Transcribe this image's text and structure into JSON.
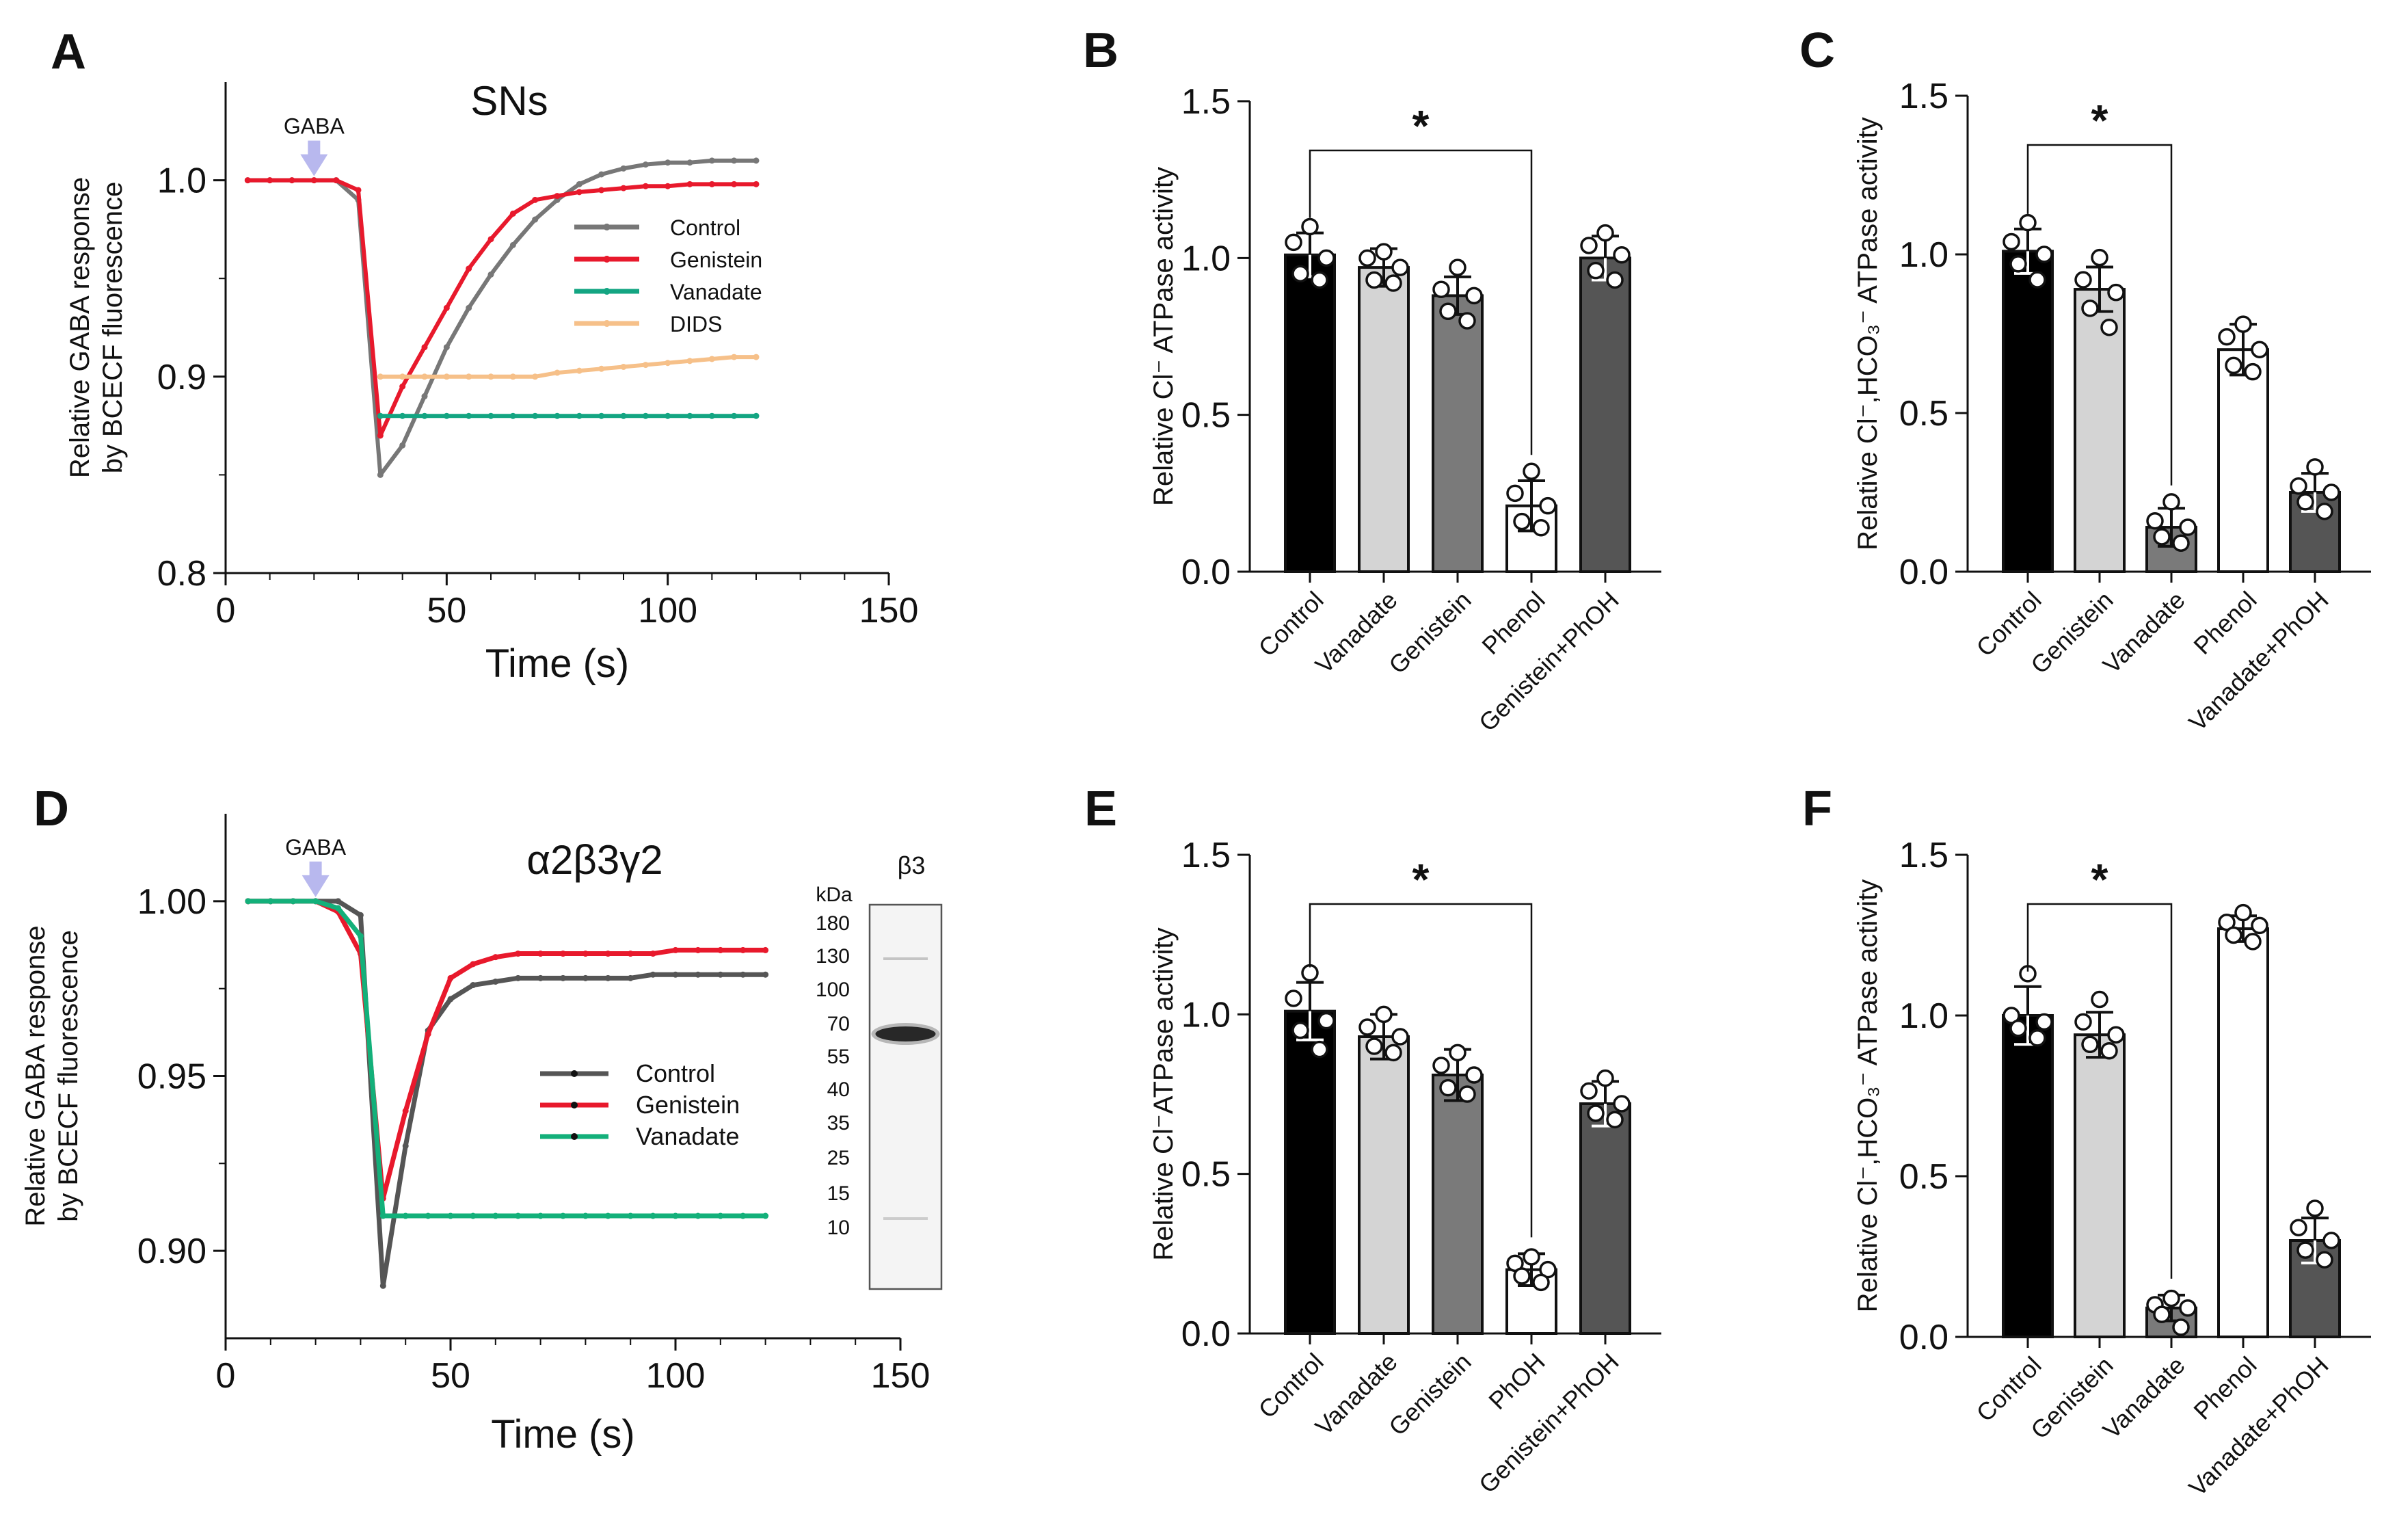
{
  "chart_data": [
    {
      "panel": "A",
      "type": "line",
      "title": "SNs",
      "xlabel": "Time (s)",
      "ylabel": [
        "Relative GABA response",
        "by BCECF fluorescence"
      ],
      "xlim": [
        0,
        150
      ],
      "ylim": [
        0.8,
        1.05
      ],
      "xticks": [
        "0",
        "50",
        "100",
        "150"
      ],
      "yticks": [
        "0.8",
        "0.9",
        "1.0"
      ],
      "ytick_values": [
        0.8,
        0.9,
        1.0
      ],
      "annotation": {
        "label": "GABA",
        "x": 20,
        "color": "#b8b8ee"
      },
      "series": [
        {
          "name": "Control",
          "color": "#777777",
          "x": [
            5,
            10,
            15,
            20,
            25,
            30,
            35,
            40,
            45,
            50,
            55,
            60,
            65,
            70,
            75,
            80,
            85,
            90,
            95,
            100,
            105,
            110,
            115,
            120
          ],
          "y": [
            1.0,
            1.0,
            1.0,
            1.0,
            1.0,
            0.99,
            0.85,
            0.865,
            0.89,
            0.915,
            0.935,
            0.952,
            0.967,
            0.98,
            0.99,
            0.998,
            1.003,
            1.006,
            1.008,
            1.009,
            1.009,
            1.01,
            1.01,
            1.01
          ]
        },
        {
          "name": "Genistein",
          "color": "#e8192c",
          "x": [
            5,
            10,
            15,
            20,
            25,
            30,
            35,
            40,
            45,
            50,
            55,
            60,
            65,
            70,
            75,
            80,
            85,
            90,
            95,
            100,
            105,
            110,
            115,
            120
          ],
          "y": [
            1.0,
            1.0,
            1.0,
            1.0,
            1.0,
            0.995,
            0.87,
            0.895,
            0.915,
            0.935,
            0.955,
            0.97,
            0.983,
            0.99,
            0.992,
            0.994,
            0.995,
            0.996,
            0.997,
            0.997,
            0.998,
            0.998,
            0.998,
            0.998
          ]
        },
        {
          "name": "Vanadate",
          "color": "#13a582",
          "x": [
            35,
            40,
            45,
            50,
            55,
            60,
            65,
            70,
            75,
            80,
            85,
            90,
            95,
            100,
            105,
            110,
            115,
            120
          ],
          "y": [
            0.88,
            0.88,
            0.88,
            0.88,
            0.88,
            0.88,
            0.88,
            0.88,
            0.88,
            0.88,
            0.88,
            0.88,
            0.88,
            0.88,
            0.88,
            0.88,
            0.88,
            0.88
          ]
        },
        {
          "name": "DIDS",
          "color": "#f6c089",
          "x": [
            35,
            40,
            45,
            50,
            55,
            60,
            65,
            70,
            75,
            80,
            85,
            90,
            95,
            100,
            105,
            110,
            115,
            120
          ],
          "y": [
            0.9,
            0.9,
            0.9,
            0.9,
            0.9,
            0.9,
            0.9,
            0.9,
            0.902,
            0.903,
            0.904,
            0.905,
            0.906,
            0.907,
            0.908,
            0.909,
            0.91,
            0.91
          ]
        }
      ]
    },
    {
      "panel": "B",
      "type": "bar",
      "ylabel": "Relative Cl⁻ ATPase activity",
      "ylim": [
        0,
        1.5
      ],
      "yticks": [
        "0.0",
        "0.5",
        "1.0",
        "1.5"
      ],
      "ytick_values": [
        0,
        0.5,
        1.0,
        1.5
      ],
      "categories": [
        "Control",
        "Vanadate",
        "Genistein",
        "Phenol",
        "Genistein+PhOH"
      ],
      "values": [
        1.01,
        0.97,
        0.88,
        0.21,
        1.0
      ],
      "errors": [
        0.07,
        0.06,
        0.06,
        0.08,
        0.07
      ],
      "colors": [
        "#000000",
        "#d4d4d4",
        "#7a7a7a",
        "#ffffff",
        "#555555"
      ],
      "points": [
        [
          1.1,
          1.05,
          1.0,
          0.95,
          0.93
        ],
        [
          1.02,
          1.0,
          0.97,
          0.93,
          0.92
        ],
        [
          0.97,
          0.9,
          0.88,
          0.83,
          0.8
        ],
        [
          0.32,
          0.25,
          0.21,
          0.16,
          0.14
        ],
        [
          1.08,
          1.04,
          1.01,
          0.96,
          0.93
        ]
      ],
      "significance": {
        "from": 0,
        "to": 3,
        "label": "*"
      }
    },
    {
      "panel": "C",
      "type": "bar",
      "ylabel": "Relative Cl⁻,HCO₃⁻ ATPase activity",
      "ylim": [
        0,
        1.5
      ],
      "yticks": [
        "0.0",
        "0.5",
        "1.0",
        "1.5"
      ],
      "ytick_values": [
        0,
        0.5,
        1.0,
        1.5
      ],
      "categories": [
        "Control",
        "Genistein",
        "Vanadate",
        "Phenol",
        "Vanadate+PhOH"
      ],
      "values": [
        1.01,
        0.89,
        0.14,
        0.7,
        0.25
      ],
      "errors": [
        0.07,
        0.07,
        0.06,
        0.08,
        0.06
      ],
      "colors": [
        "#000000",
        "#d4d4d4",
        "#7a7a7a",
        "#ffffff",
        "#555555"
      ],
      "points": [
        [
          1.1,
          1.04,
          1.0,
          0.97,
          0.92
        ],
        [
          0.99,
          0.92,
          0.88,
          0.83,
          0.77
        ],
        [
          0.22,
          0.16,
          0.14,
          0.11,
          0.09
        ],
        [
          0.78,
          0.74,
          0.7,
          0.65,
          0.63
        ],
        [
          0.33,
          0.27,
          0.25,
          0.22,
          0.19
        ]
      ],
      "significance": {
        "from": 0,
        "to": 2,
        "label": "*"
      }
    },
    {
      "panel": "D",
      "type": "line",
      "title": "α2β3γ2",
      "xlabel": "Time (s)",
      "ylabel": [
        "Relative GABA response",
        "by BCECF fluorescence"
      ],
      "xlim": [
        0,
        150
      ],
      "ylim": [
        0.875,
        1.025
      ],
      "xticks": [
        "0",
        "50",
        "100",
        "150"
      ],
      "yticks": [
        "0.90",
        "0.95",
        "1.00"
      ],
      "ytick_values": [
        0.9,
        0.95,
        1.0
      ],
      "annotation": {
        "label": "GABA",
        "x": 20,
        "color": "#b8b8ee"
      },
      "series": [
        {
          "name": "Control",
          "color": "#555555",
          "x": [
            5,
            10,
            15,
            20,
            25,
            30,
            35,
            40,
            45,
            50,
            55,
            60,
            65,
            70,
            75,
            80,
            85,
            90,
            95,
            100,
            105,
            110,
            115,
            120
          ],
          "y": [
            1.0,
            1.0,
            1.0,
            1.0,
            1.0,
            0.996,
            0.89,
            0.93,
            0.963,
            0.972,
            0.976,
            0.977,
            0.978,
            0.978,
            0.978,
            0.978,
            0.978,
            0.978,
            0.979,
            0.979,
            0.979,
            0.979,
            0.979,
            0.979
          ]
        },
        {
          "name": "Genistein",
          "color": "#e8192c",
          "x": [
            5,
            10,
            15,
            20,
            25,
            30,
            35,
            40,
            45,
            50,
            55,
            60,
            65,
            70,
            75,
            80,
            85,
            90,
            95,
            100,
            105,
            110,
            115,
            120
          ],
          "y": [
            1.0,
            1.0,
            1.0,
            1.0,
            0.997,
            0.985,
            0.915,
            0.94,
            0.962,
            0.978,
            0.982,
            0.984,
            0.985,
            0.985,
            0.985,
            0.985,
            0.985,
            0.985,
            0.985,
            0.986,
            0.986,
            0.986,
            0.986,
            0.986
          ]
        },
        {
          "name": "Vanadate",
          "color": "#13b07a",
          "x": [
            5,
            10,
            15,
            20,
            25,
            30,
            35,
            40,
            45,
            50,
            55,
            60,
            65,
            70,
            75,
            80,
            85,
            90,
            95,
            100,
            105,
            110,
            115,
            120
          ],
          "y": [
            1.0,
            1.0,
            1.0,
            1.0,
            0.998,
            0.99,
            0.91,
            0.91,
            0.91,
            0.91,
            0.91,
            0.91,
            0.91,
            0.91,
            0.91,
            0.91,
            0.91,
            0.91,
            0.91,
            0.91,
            0.91,
            0.91,
            0.91,
            0.91
          ]
        }
      ],
      "inset": {
        "title": "β3",
        "unit": "kDa",
        "markers": [
          "180",
          "130",
          "100",
          "70",
          "55",
          "40",
          "35",
          "25",
          "15",
          "10"
        ]
      }
    },
    {
      "panel": "E",
      "type": "bar",
      "ylabel": "Relative Cl⁻ATPase activity",
      "ylim": [
        0,
        1.5
      ],
      "yticks": [
        "0.0",
        "0.5",
        "1.0",
        "1.5"
      ],
      "ytick_values": [
        0,
        0.5,
        1.0,
        1.5
      ],
      "categories": [
        "Control",
        "Vanadate",
        "Genistein",
        "PhOH",
        "Genistein+PhOH"
      ],
      "values": [
        1.01,
        0.93,
        0.81,
        0.2,
        0.72
      ],
      "errors": [
        0.09,
        0.07,
        0.08,
        0.05,
        0.07
      ],
      "colors": [
        "#000000",
        "#d4d4d4",
        "#7a7a7a",
        "#ffffff",
        "#555555"
      ],
      "points": [
        [
          1.13,
          1.05,
          0.98,
          0.95,
          0.89
        ],
        [
          1.0,
          0.96,
          0.93,
          0.9,
          0.88
        ],
        [
          0.88,
          0.84,
          0.81,
          0.77,
          0.75
        ],
        [
          0.24,
          0.22,
          0.2,
          0.18,
          0.16
        ],
        [
          0.8,
          0.76,
          0.72,
          0.69,
          0.67
        ]
      ],
      "significance": {
        "from": 0,
        "to": 3,
        "label": "*"
      }
    },
    {
      "panel": "F",
      "type": "bar",
      "ylabel": "Relative Cl⁻,HCO₃⁻ ATPase activity",
      "ylim": [
        0,
        1.5
      ],
      "yticks": [
        "0.0",
        "0.5",
        "1.0",
        "1.5"
      ],
      "ytick_values": [
        0,
        0.5,
        1.0,
        1.5
      ],
      "categories": [
        "Control",
        "Genistein",
        "Vanadate",
        "Phenol",
        "Vanadate+PhOH"
      ],
      "values": [
        1.0,
        0.94,
        0.09,
        1.27,
        0.3
      ],
      "errors": [
        0.09,
        0.07,
        0.04,
        0.04,
        0.07
      ],
      "colors": [
        "#000000",
        "#d4d4d4",
        "#7a7a7a",
        "#ffffff",
        "#555555"
      ],
      "points": [
        [
          1.13,
          1.0,
          0.98,
          0.96,
          0.93
        ],
        [
          1.05,
          0.98,
          0.94,
          0.91,
          0.89
        ],
        [
          0.12,
          0.1,
          0.09,
          0.07,
          0.03
        ],
        [
          1.32,
          1.29,
          1.28,
          1.25,
          1.23
        ],
        [
          0.4,
          0.34,
          0.3,
          0.27,
          0.24
        ]
      ],
      "significance": {
        "from": 0,
        "to": 2,
        "label": "*"
      }
    }
  ]
}
